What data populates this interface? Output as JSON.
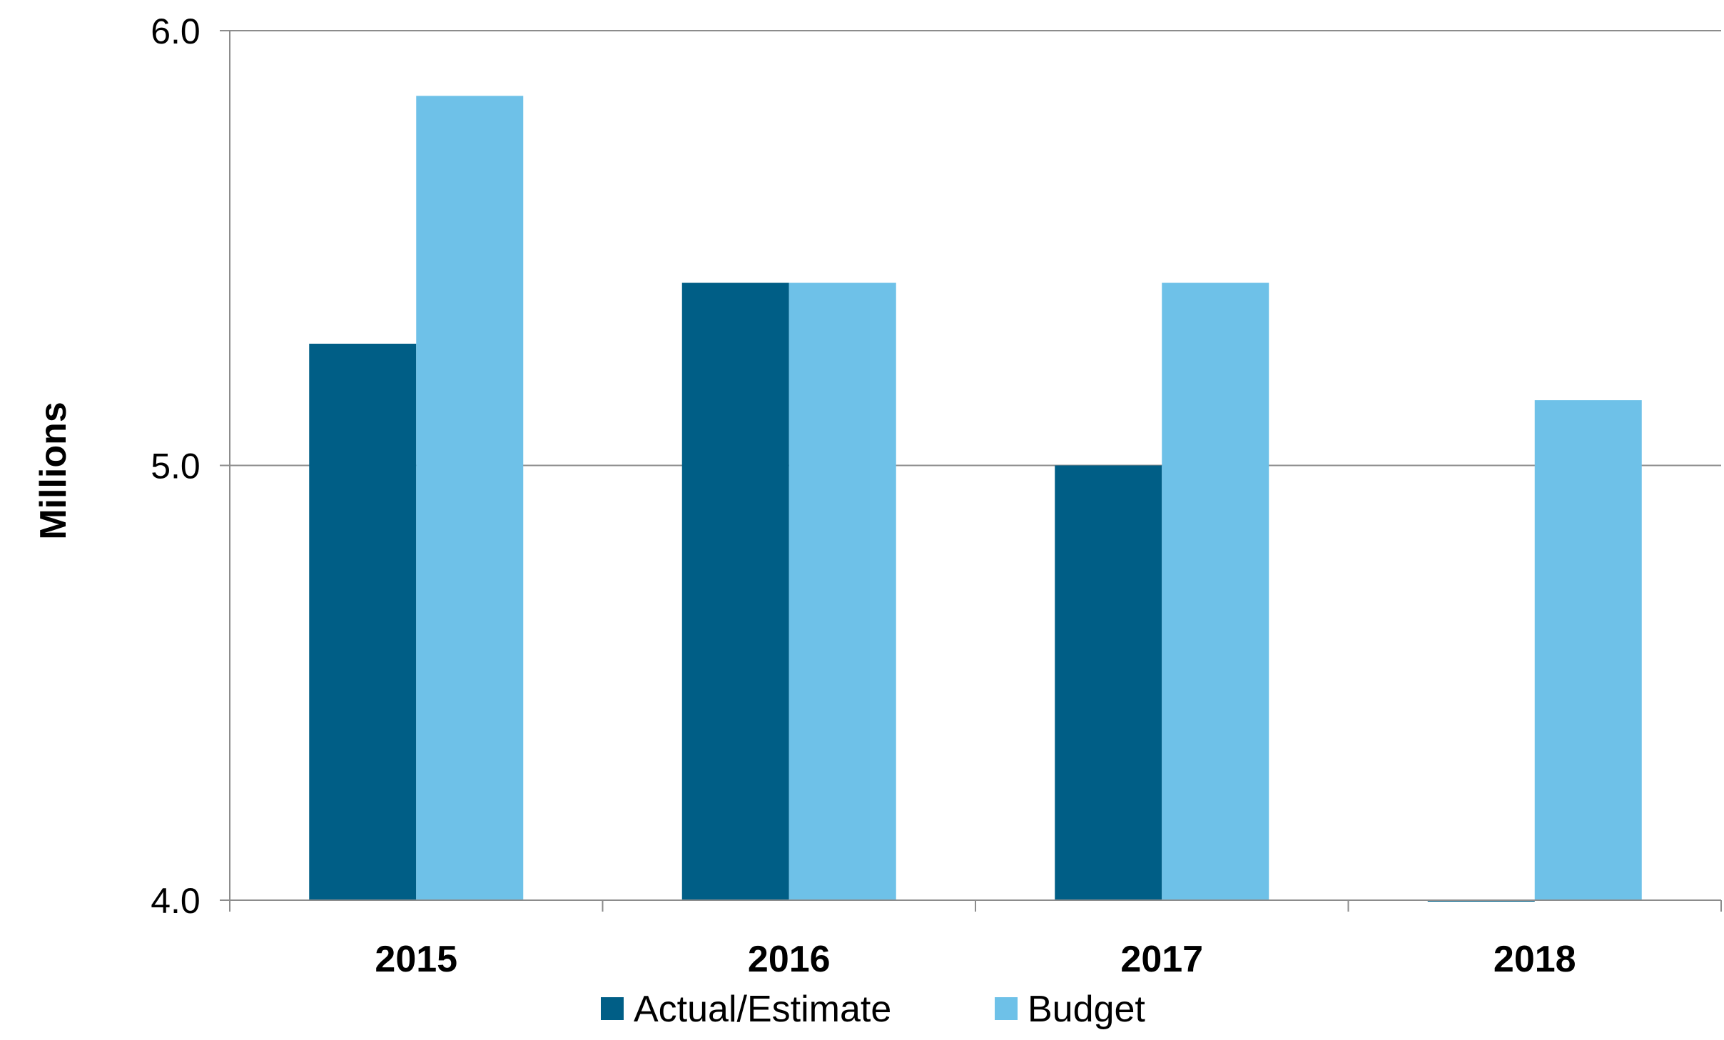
{
  "chart_data": {
    "type": "bar",
    "title": "",
    "xlabel": "",
    "ylabel": "Millions",
    "ylim": [
      4.0,
      6.0
    ],
    "yticks": [
      "4.0",
      "5.0",
      "6.0"
    ],
    "ytick_values": [
      4.0,
      5.0,
      6.0
    ],
    "grid": true,
    "legend_position": "bottom",
    "categories": [
      "2015",
      "2016",
      "2017",
      "2018"
    ],
    "series": [
      {
        "name": "Actual/Estimate",
        "color": "#005E86",
        "values": [
          5.28,
          5.42,
          5.0,
          3.995
        ]
      },
      {
        "name": "Budget",
        "color": "#6EC1E8",
        "values": [
          5.85,
          5.42,
          5.42,
          5.15
        ]
      }
    ]
  }
}
